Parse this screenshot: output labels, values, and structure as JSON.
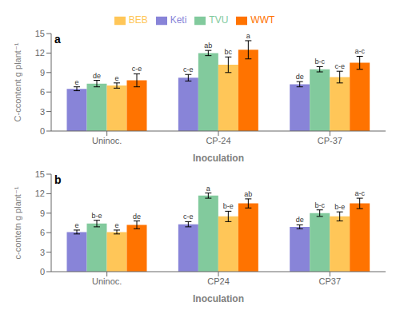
{
  "chart_data": [
    {
      "type": "bar",
      "title": "a",
      "categories": [
        "Uninoc.",
        "CP-24",
        "CP-37"
      ],
      "series": [
        {
          "name": "Keti",
          "color": "#8884d8",
          "values": [
            6.5,
            8.2,
            7.2
          ],
          "errors": [
            0.3,
            0.5,
            0.4
          ],
          "annotations": [
            "e",
            "c-e",
            "de"
          ]
        },
        {
          "name": "TVU",
          "color": "#82ca9d",
          "values": [
            7.3,
            12.0,
            9.5
          ],
          "errors": [
            0.5,
            0.4,
            0.4
          ],
          "annotations": [
            "de",
            "ab",
            "b-c"
          ]
        },
        {
          "name": "BEB",
          "color": "#ffc658",
          "values": [
            7.0,
            10.2,
            8.3
          ],
          "errors": [
            0.4,
            1.2,
            0.9
          ],
          "annotations": [
            "e",
            "bc",
            "c-e"
          ]
        },
        {
          "name": "WWT",
          "color": "#ff7300",
          "values": [
            7.8,
            12.5,
            10.5
          ],
          "errors": [
            1.0,
            1.4,
            1.0
          ],
          "annotations": [
            "c-e",
            "a",
            "a-c"
          ]
        }
      ],
      "xlabel": "Inoculation",
      "ylabel": "C-ccontent g plant⁻¹",
      "ylim": [
        0,
        15
      ],
      "yticks": [
        0,
        3,
        6,
        9,
        12,
        15
      ],
      "grid": false,
      "legend": "top"
    },
    {
      "type": "bar",
      "title": "b",
      "categories": [
        "Uninoc.",
        "CP24",
        "CP37"
      ],
      "series": [
        {
          "name": "Keti",
          "color": "#8884d8",
          "values": [
            6.1,
            7.3,
            6.9
          ],
          "errors": [
            0.3,
            0.4,
            0.3
          ],
          "annotations": [
            "e",
            "c-e",
            "de"
          ]
        },
        {
          "name": "TVU",
          "color": "#82ca9d",
          "values": [
            7.4,
            11.7,
            9.0
          ],
          "errors": [
            0.5,
            0.4,
            0.5
          ],
          "annotations": [
            "b-e",
            "a",
            "b-c"
          ]
        },
        {
          "name": "BEB",
          "color": "#ffc658",
          "values": [
            6.1,
            8.5,
            8.5
          ],
          "errors": [
            0.3,
            0.8,
            0.7
          ],
          "annotations": [
            "e",
            "b-e",
            "b-e"
          ]
        },
        {
          "name": "WWT",
          "color": "#ff7300",
          "values": [
            7.2,
            10.5,
            10.5
          ],
          "errors": [
            0.6,
            0.7,
            0.8
          ],
          "annotations": [
            "de",
            "ab",
            "a-c"
          ]
        }
      ],
      "xlabel": "Inoculation",
      "ylabel": "c-contetn g plant⁻¹",
      "ylim": [
        0,
        15
      ],
      "yticks": [
        0,
        3,
        6,
        9,
        12,
        15
      ],
      "grid": false
    }
  ]
}
